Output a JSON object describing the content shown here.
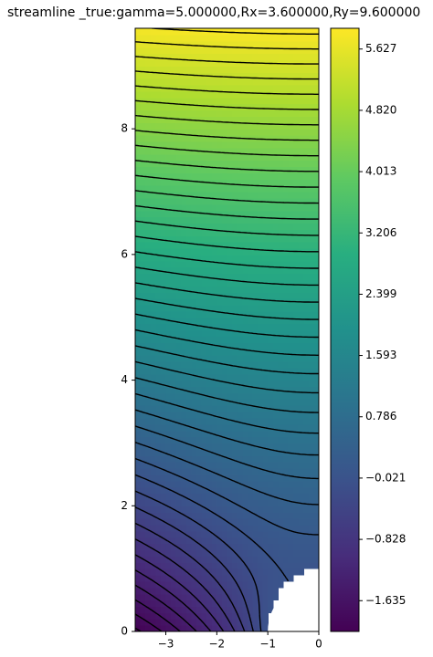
{
  "chart_data": {
    "type": "contour",
    "title": "streamline _true:gamma=5.000000,Rx=3.600000,Ry=9.600000",
    "xlim": [
      -3.6,
      0
    ],
    "ylim": [
      0,
      9.6
    ],
    "xticks": [
      {
        "value": -3,
        "label": "−3"
      },
      {
        "value": -2,
        "label": "−2"
      },
      {
        "value": -1,
        "label": "−1"
      },
      0
    ],
    "yticks": [
      0,
      2,
      4,
      6,
      8
    ],
    "colormap": "viridis",
    "colorbar": {
      "lim": [
        -2.04,
        5.9
      ],
      "ticks": [
        {
          "value": -1.635,
          "label": "−1.635"
        },
        {
          "value": -0.828,
          "label": "−0.828"
        },
        {
          "value": -0.021,
          "label": "−0.021"
        },
        0.786,
        1.593,
        2.399,
        3.206,
        4.013,
        {
          "value": 4.82,
          "label": "4.820"
        },
        5.627
      ]
    }
  }
}
